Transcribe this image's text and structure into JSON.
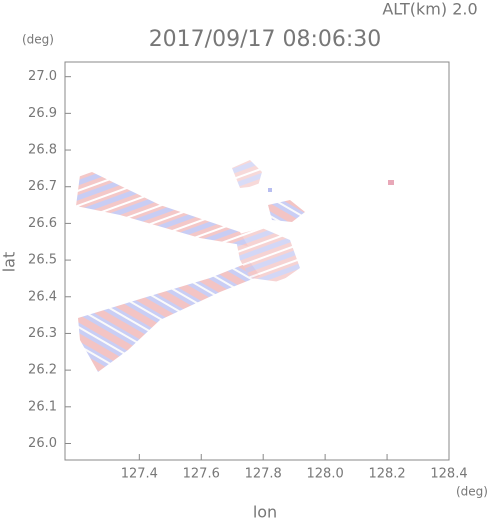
{
  "chart_data": {
    "type": "image",
    "title": "2017/09/17 08:06:30",
    "subtitle": "ALT(km) 2.0",
    "x_label": "lon",
    "y_label": "lat",
    "x_unit": "(deg)",
    "y_unit": "(deg)",
    "xlim": [
      127.16,
      128.4
    ],
    "xticks": [
      127.4,
      127.6,
      127.8,
      {
        "value": 128,
        "label": "128.0"
      },
      128.2,
      128.4
    ],
    "ylim": [
      25.955,
      27.04
    ],
    "yticks": [
      {
        "value": 26,
        "label": "26.0"
      },
      26.1,
      26.2,
      26.3,
      26.4,
      26.5,
      26.6,
      26.7,
      26.8,
      26.9,
      {
        "value": 27,
        "label": "27.0"
      }
    ]
  }
}
